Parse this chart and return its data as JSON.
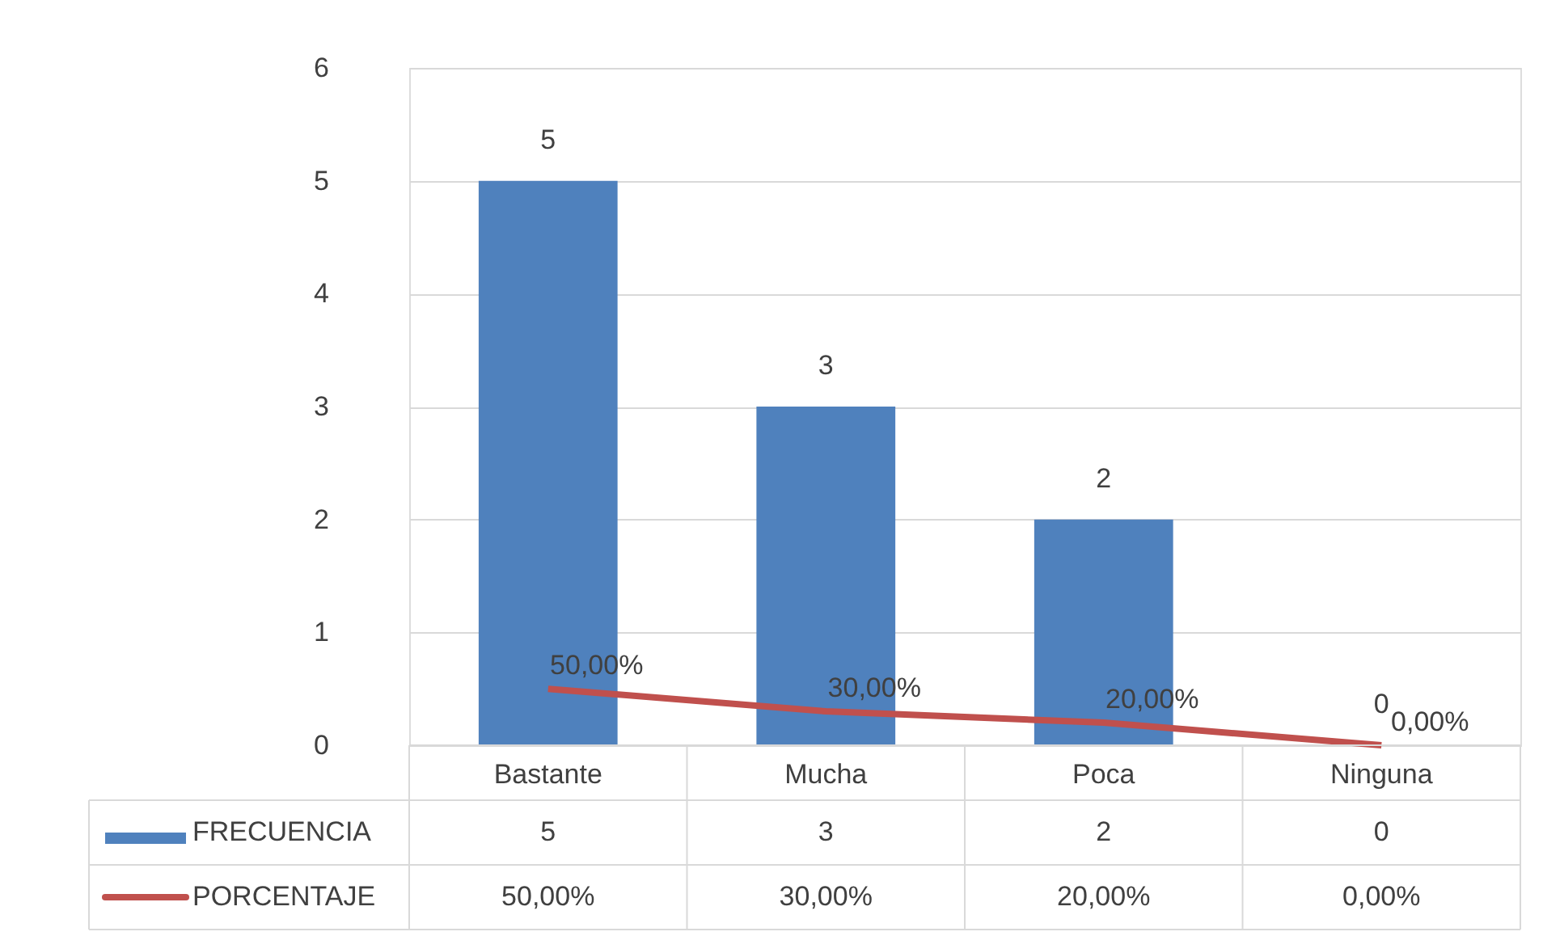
{
  "chart_data": {
    "type": "bar",
    "categories": [
      "Bastante",
      "Mucha",
      "Poca",
      "Ninguna"
    ],
    "series": [
      {
        "name": "FRECUENCIA",
        "color": "#4f81bd",
        "values": [
          5,
          3,
          2,
          0
        ],
        "value_labels": [
          "5",
          "3",
          "2",
          "0"
        ]
      },
      {
        "name": "PORCENTAJE",
        "type": "line",
        "color": "#c0504d",
        "values": [
          0.5,
          0.3,
          0.2,
          0
        ],
        "value_labels": [
          "50,00%",
          "30,00%",
          "20,00%",
          "0,00%"
        ]
      }
    ],
    "ylim": [
      0,
      6
    ],
    "yticks": [
      0,
      1,
      2,
      3,
      4,
      5,
      6
    ],
    "grid": "y",
    "data_labels": true,
    "legend": "bottom"
  }
}
